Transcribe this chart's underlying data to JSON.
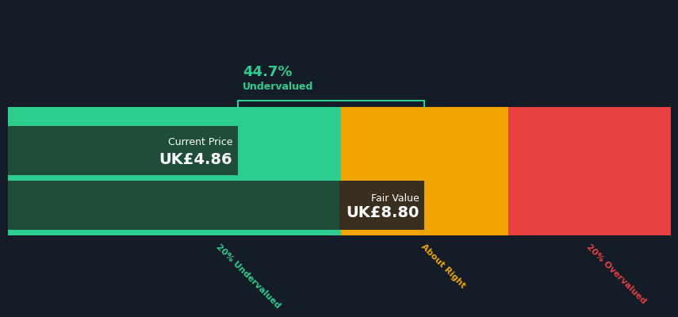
{
  "bg_color": "#131c27",
  "green_color": "#2dcc8f",
  "dark_green_color": "#1e4d3a",
  "fv_box_color": "#3a2f1e",
  "amber_color": "#f0a500",
  "red_color": "#e84040",
  "current_price": 4.86,
  "fair_value": 8.8,
  "price_label": "Current Price",
  "price_value_label": "UK£4.86",
  "fv_label": "Fair Value",
  "fv_value_label": "UK£8.80",
  "pct_label": "44.7%",
  "pct_sublabel": "Undervalued",
  "label_20under": "20% Undervalued",
  "label_about": "About Right",
  "label_20over": "20% Overvalued",
  "x_min": 0,
  "x_max": 14.0,
  "fv_20under": 7.04,
  "fv_20over": 10.56,
  "text_color": "#ffffff",
  "green_text": "#2dcc8f",
  "amber_text": "#f0a500",
  "red_text": "#e84040"
}
